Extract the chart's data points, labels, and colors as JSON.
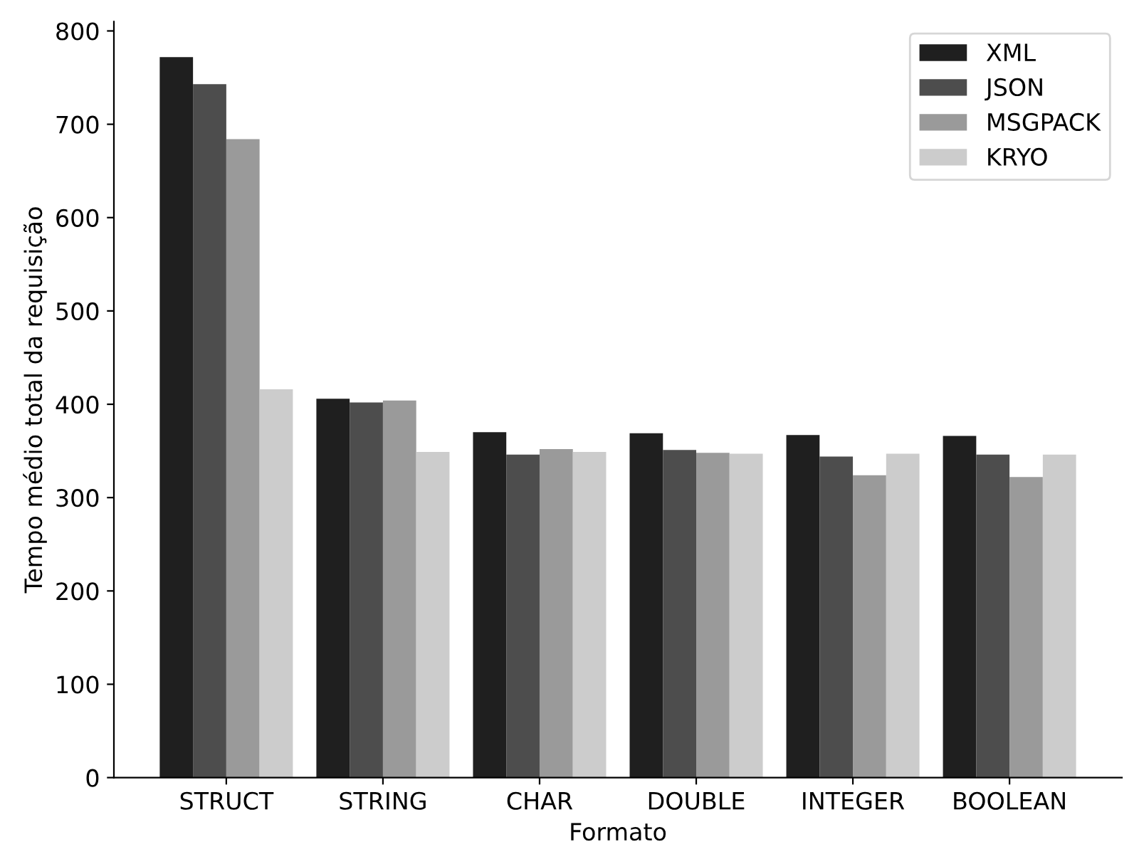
{
  "chart_data": {
    "type": "bar",
    "xlabel": "Formato",
    "ylabel": "Tempo médio total da requisição",
    "categories": [
      "STRUCT",
      "STRING",
      "CHAR",
      "DOUBLE",
      "INTEGER",
      "BOOLEAN"
    ],
    "series": [
      {
        "name": "XML",
        "color": "#1f1f1f",
        "values": [
          772,
          406,
          370,
          369,
          367,
          366
        ]
      },
      {
        "name": "JSON",
        "color": "#4d4d4d",
        "values": [
          743,
          402,
          346,
          351,
          344,
          346
        ]
      },
      {
        "name": "MSGPACK",
        "color": "#9a9a9a",
        "values": [
          684,
          404,
          352,
          348,
          324,
          322
        ]
      },
      {
        "name": "KRYO",
        "color": "#cccccc",
        "values": [
          416,
          349,
          349,
          347,
          347,
          346
        ]
      }
    ],
    "ylim": [
      0,
      810
    ],
    "yticks": [
      0,
      100,
      200,
      300,
      400,
      500,
      600,
      700,
      800
    ],
    "grid": false,
    "legend": "top right"
  }
}
